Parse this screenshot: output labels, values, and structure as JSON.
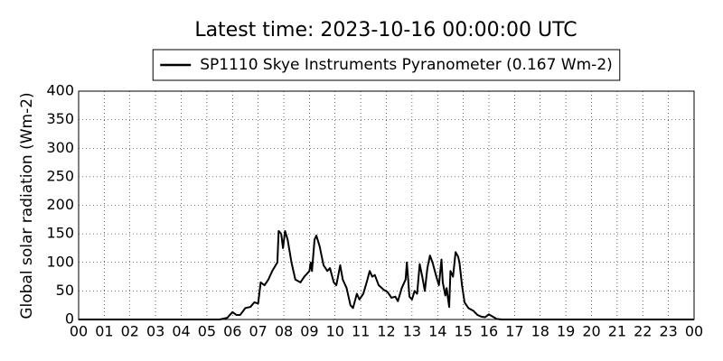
{
  "chart_data": {
    "type": "line",
    "title": "Latest time: 2023-10-16 00:00:00 UTC",
    "y_label": "Global solar radiation (Wm-2)",
    "legend": "upper center",
    "grid": true,
    "x": [
      0,
      5.5,
      5.8,
      6.0,
      6.15,
      6.3,
      6.5,
      6.7,
      6.85,
      7.0,
      7.1,
      7.25,
      7.4,
      7.55,
      7.75,
      7.8,
      7.9,
      7.97,
      8.05,
      8.15,
      8.3,
      8.45,
      8.65,
      8.8,
      9.0,
      9.05,
      9.1,
      9.2,
      9.27,
      9.4,
      9.55,
      9.7,
      9.8,
      9.95,
      10.05,
      10.2,
      10.3,
      10.45,
      10.6,
      10.7,
      10.85,
      10.95,
      11.1,
      11.25,
      11.35,
      11.45,
      11.55,
      11.7,
      11.9,
      12.05,
      12.2,
      12.35,
      12.45,
      12.6,
      12.75,
      12.8,
      12.9,
      13.0,
      13.1,
      13.2,
      13.3,
      13.4,
      13.5,
      13.6,
      13.7,
      13.8,
      13.95,
      14.05,
      14.15,
      14.2,
      14.3,
      14.35,
      14.45,
      14.5,
      14.6,
      14.7,
      14.8,
      14.85,
      14.95,
      15.05,
      15.2,
      15.4,
      15.55,
      15.7,
      15.85,
      16.0,
      16.15,
      16.3,
      16.5,
      24
    ],
    "series": [
      {
        "name": "SP1110 Skye Instruments Pyranometer (0.167 Wm-2)",
        "color": "#000000",
        "values": [
          0,
          0,
          3,
          13,
          8,
          8,
          20,
          22,
          30,
          28,
          65,
          60,
          70,
          85,
          100,
          155,
          150,
          125,
          155,
          140,
          100,
          70,
          65,
          75,
          85,
          100,
          85,
          140,
          147,
          128,
          95,
          85,
          90,
          65,
          60,
          95,
          70,
          55,
          25,
          20,
          45,
          35,
          45,
          68,
          85,
          75,
          78,
          60,
          52,
          48,
          38,
          40,
          32,
          55,
          70,
          100,
          40,
          35,
          50,
          45,
          97,
          75,
          50,
          90,
          112,
          100,
          75,
          60,
          105,
          65,
          42,
          55,
          22,
          85,
          75,
          118,
          110,
          100,
          60,
          30,
          20,
          15,
          8,
          5,
          4,
          9,
          5,
          1,
          0,
          0
        ]
      }
    ],
    "xlim": [
      0,
      24
    ],
    "xticks": [
      {
        "value": 0,
        "label": "00"
      },
      {
        "value": 1,
        "label": "01"
      },
      {
        "value": 2,
        "label": "02"
      },
      {
        "value": 3,
        "label": "03"
      },
      {
        "value": 4,
        "label": "04"
      },
      {
        "value": 5,
        "label": "05"
      },
      {
        "value": 6,
        "label": "06"
      },
      {
        "value": 7,
        "label": "07"
      },
      {
        "value": 8,
        "label": "08"
      },
      {
        "value": 9,
        "label": "09"
      },
      10,
      11,
      12,
      13,
      14,
      15,
      16,
      17,
      18,
      19,
      20,
      21,
      22,
      23,
      {
        "value": 24,
        "label": "00"
      }
    ],
    "ylim": [
      0,
      400
    ],
    "yticks": [
      0,
      50,
      100,
      150,
      200,
      250,
      300,
      350,
      400
    ]
  }
}
